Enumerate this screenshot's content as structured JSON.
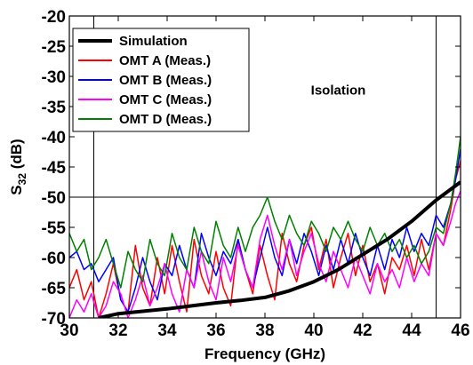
{
  "chart_data": {
    "type": "line",
    "xlabel": "Frequency (GHz)",
    "ylabel_main": "S",
    "ylabel_sub": "32",
    "ylabel_unit": " (dB)",
    "xlim": [
      30,
      46
    ],
    "ylim": [
      -70,
      -20
    ],
    "xticks": [
      30,
      32,
      34,
      36,
      38,
      40,
      42,
      44,
      46
    ],
    "yticks": [
      -70,
      -65,
      -60,
      -55,
      -50,
      -45,
      -40,
      -35,
      -30,
      -25,
      -20
    ],
    "grid": false,
    "legend_position": "top-left",
    "annotation": {
      "text": "Isolation",
      "x": 41,
      "y": -33
    },
    "reference_lines": {
      "horizontal_y": -50,
      "vertical_x": [
        31,
        45
      ]
    },
    "series": [
      {
        "name": "Simulation",
        "color": "#000000",
        "width": 4,
        "x": [
          31.2,
          32,
          33,
          34,
          35,
          36,
          37,
          38,
          39,
          40,
          41,
          42,
          43,
          44,
          45,
          46
        ],
        "y": [
          -70,
          -69.3,
          -68.9,
          -68.5,
          -68,
          -67.5,
          -67.1,
          -66.6,
          -65.5,
          -64,
          -62,
          -59.5,
          -57,
          -54,
          -50.5,
          -47.5
        ]
      },
      {
        "name": "OMT A (Meas.)",
        "color": "#ff0000",
        "width": 1.5,
        "x": [
          30,
          30.3,
          30.6,
          30.9,
          31.2,
          31.5,
          31.8,
          32.1,
          32.4,
          32.7,
          33,
          33.3,
          33.6,
          33.9,
          34.2,
          34.5,
          34.8,
          35.1,
          35.4,
          35.7,
          36,
          36.3,
          36.6,
          36.9,
          37.2,
          37.5,
          37.8,
          38.1,
          38.4,
          38.7,
          39,
          39.3,
          39.6,
          39.9,
          40.2,
          40.5,
          40.8,
          41.1,
          41.4,
          41.7,
          42,
          42.3,
          42.6,
          42.9,
          43.2,
          43.5,
          43.8,
          44.1,
          44.4,
          44.7,
          45,
          45.3,
          45.6,
          45.8,
          46
        ],
        "y": [
          -65,
          -62,
          -67,
          -64,
          -70,
          -66,
          -61,
          -67,
          -69,
          -58,
          -65,
          -68,
          -60,
          -66,
          -58,
          -64,
          -69,
          -57,
          -63,
          -66,
          -59,
          -65,
          -68,
          -57,
          -62,
          -66,
          -58,
          -63,
          -67,
          -56,
          -61,
          -64,
          -58,
          -55,
          -62,
          -57,
          -65,
          -60,
          -56,
          -63,
          -58,
          -64,
          -61,
          -66,
          -60,
          -62,
          -58,
          -63,
          -57,
          -62,
          -56,
          -58,
          -52,
          -47,
          -44
        ]
      },
      {
        "name": "OMT B (Meas.)",
        "color": "#0000ff",
        "width": 1.5,
        "x": [
          30,
          30.3,
          30.6,
          30.9,
          31.2,
          31.5,
          31.8,
          32.1,
          32.4,
          32.7,
          33,
          33.3,
          33.6,
          33.9,
          34.2,
          34.5,
          34.8,
          35.1,
          35.4,
          35.7,
          36,
          36.3,
          36.6,
          36.9,
          37.2,
          37.5,
          37.8,
          38.1,
          38.4,
          38.7,
          39,
          39.3,
          39.6,
          39.9,
          40.2,
          40.5,
          40.8,
          41.1,
          41.4,
          41.7,
          42,
          42.3,
          42.6,
          42.9,
          43.2,
          43.5,
          43.8,
          44.1,
          44.4,
          44.7,
          45,
          45.3,
          45.6,
          45.8,
          46
        ],
        "y": [
          -60,
          -59,
          -62,
          -61,
          -64,
          -62,
          -60,
          -67,
          -69,
          -65,
          -60,
          -64,
          -67,
          -61,
          -63,
          -58,
          -62,
          -65,
          -56,
          -60,
          -63,
          -59,
          -61,
          -57,
          -62,
          -65,
          -60,
          -55,
          -60,
          -63,
          -57,
          -61,
          -56,
          -59,
          -63,
          -58,
          -62,
          -57,
          -61,
          -56,
          -60,
          -63,
          -58,
          -62,
          -57,
          -60,
          -55,
          -59,
          -56,
          -58,
          -53,
          -55,
          -51,
          -47,
          -42
        ]
      },
      {
        "name": "OMT C (Meas.)",
        "color": "#ff00ff",
        "width": 1.5,
        "x": [
          30,
          30.3,
          30.6,
          30.9,
          31.2,
          31.5,
          31.8,
          32.1,
          32.4,
          32.7,
          33,
          33.3,
          33.6,
          33.9,
          34.2,
          34.5,
          34.8,
          35.1,
          35.4,
          35.7,
          36,
          36.3,
          36.6,
          36.9,
          37.2,
          37.5,
          37.8,
          38.1,
          38.4,
          38.7,
          39,
          39.3,
          39.6,
          39.9,
          40.2,
          40.5,
          40.8,
          41.1,
          41.4,
          41.7,
          42,
          42.3,
          42.6,
          42.9,
          43.2,
          43.5,
          43.8,
          44.1,
          44.4,
          44.7,
          45,
          45.3,
          45.6,
          45.8,
          46
        ],
        "y": [
          -70,
          -67,
          -69,
          -66,
          -70,
          -68,
          -64,
          -66,
          -70,
          -67,
          -63,
          -68,
          -65,
          -61,
          -66,
          -69,
          -62,
          -65,
          -59,
          -64,
          -67,
          -60,
          -64,
          -58,
          -62,
          -65,
          -57,
          -53,
          -58,
          -62,
          -57,
          -63,
          -59,
          -56,
          -61,
          -64,
          -59,
          -62,
          -65,
          -60,
          -63,
          -66,
          -61,
          -64,
          -62,
          -65,
          -60,
          -64,
          -61,
          -63,
          -56,
          -58,
          -54,
          -51,
          -49
        ]
      },
      {
        "name": "OMT D (Meas.)",
        "color": "#008000",
        "width": 1.5,
        "x": [
          30,
          30.3,
          30.6,
          30.9,
          31.2,
          31.5,
          31.8,
          32.1,
          32.4,
          32.7,
          33,
          33.3,
          33.6,
          33.9,
          34.2,
          34.5,
          34.8,
          35.1,
          35.4,
          35.7,
          36,
          36.3,
          36.6,
          36.9,
          37.2,
          37.5,
          37.8,
          38.1,
          38.4,
          38.7,
          39,
          39.3,
          39.6,
          39.9,
          40.2,
          40.5,
          40.8,
          41.1,
          41.4,
          41.7,
          42,
          42.3,
          42.6,
          42.9,
          43.2,
          43.5,
          43.8,
          44.1,
          44.4,
          44.7,
          45,
          45.3,
          45.6,
          45.8,
          46
        ],
        "y": [
          -56,
          -59,
          -57,
          -62,
          -60,
          -57,
          -61,
          -65,
          -59,
          -62,
          -64,
          -57,
          -61,
          -63,
          -56,
          -60,
          -62,
          -55,
          -59,
          -61,
          -54,
          -58,
          -60,
          -55,
          -59,
          -55,
          -53,
          -50,
          -54,
          -57,
          -53,
          -56,
          -58,
          -54,
          -56,
          -59,
          -55,
          -57,
          -54,
          -57,
          -59,
          -55,
          -58,
          -56,
          -59,
          -57,
          -60,
          -58,
          -61,
          -59,
          -55,
          -56,
          -51,
          -46,
          -40
        ]
      }
    ]
  }
}
